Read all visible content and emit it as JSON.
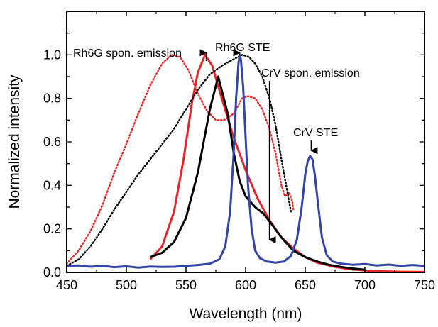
{
  "chart_data": {
    "type": "line",
    "xlabel": "Wavelength (nm)",
    "ylabel": "Normalized intensity",
    "xlim": [
      450,
      750
    ],
    "ylim": [
      0.0,
      1.2
    ],
    "x_ticks": [
      450,
      500,
      550,
      600,
      650,
      700,
      750
    ],
    "y_ticks": [
      0.0,
      0.2,
      0.4,
      0.6,
      0.8,
      1.0
    ],
    "grid": false,
    "legend": "none",
    "series": [
      {
        "key": "rh6g_spon",
        "style": "solid",
        "color": "#e8262a",
        "points": [
          [
            520,
            0.06
          ],
          [
            530,
            0.12
          ],
          [
            540,
            0.28
          ],
          [
            548,
            0.52
          ],
          [
            555,
            0.78
          ],
          [
            560,
            0.92
          ],
          [
            566,
            1.0
          ],
          [
            572,
            0.95
          ],
          [
            580,
            0.8
          ],
          [
            590,
            0.62
          ],
          [
            600,
            0.47
          ],
          [
            610,
            0.34
          ],
          [
            620,
            0.24
          ],
          [
            630,
            0.16
          ],
          [
            640,
            0.11
          ],
          [
            650,
            0.07
          ],
          [
            660,
            0.045
          ],
          [
            675,
            0.025
          ],
          [
            690,
            0.013
          ],
          [
            710,
            0.006
          ],
          [
            730,
            0.003
          ],
          [
            750,
            0.002
          ]
        ]
      },
      {
        "key": "rh6g_abs",
        "style": "dotted",
        "color": "#e8262a",
        "points": [
          [
            450,
            0.04
          ],
          [
            460,
            0.1
          ],
          [
            470,
            0.19
          ],
          [
            480,
            0.31
          ],
          [
            490,
            0.46
          ],
          [
            500,
            0.59
          ],
          [
            510,
            0.73
          ],
          [
            520,
            0.86
          ],
          [
            530,
            0.96
          ],
          [
            538,
            1.0
          ],
          [
            545,
            0.99
          ],
          [
            552,
            0.93
          ],
          [
            560,
            0.82
          ],
          [
            568,
            0.74
          ],
          [
            575,
            0.7
          ],
          [
            582,
            0.7
          ],
          [
            590,
            0.73
          ],
          [
            597,
            0.8
          ],
          [
            602,
            0.81
          ],
          [
            608,
            0.8
          ],
          [
            614,
            0.75
          ],
          [
            620,
            0.66
          ],
          [
            625,
            0.55
          ],
          [
            630,
            0.4
          ],
          [
            633,
            0.35
          ],
          [
            636,
            0.37
          ],
          [
            639,
            0.33
          ],
          [
            640,
            0.29
          ]
        ]
      },
      {
        "key": "crv_spon",
        "style": "solid",
        "color": "#000000",
        "points": [
          [
            520,
            0.07
          ],
          [
            530,
            0.09
          ],
          [
            540,
            0.14
          ],
          [
            550,
            0.25
          ],
          [
            560,
            0.46
          ],
          [
            570,
            0.75
          ],
          [
            577,
            0.9
          ],
          [
            585,
            0.73
          ],
          [
            590,
            0.55
          ],
          [
            595,
            0.42
          ],
          [
            600,
            0.35
          ],
          [
            608,
            0.3
          ],
          [
            615,
            0.27
          ],
          [
            622,
            0.22
          ],
          [
            630,
            0.16
          ],
          [
            640,
            0.1
          ],
          [
            650,
            0.07
          ],
          [
            660,
            0.05
          ],
          [
            670,
            0.035
          ],
          [
            680,
            0.025
          ],
          [
            690,
            0.018
          ],
          [
            700,
            0.012
          ]
        ]
      },
      {
        "key": "crv_abs",
        "style": "dotted",
        "color": "#000000",
        "points": [
          [
            450,
            0.03
          ],
          [
            460,
            0.06
          ],
          [
            470,
            0.12
          ],
          [
            480,
            0.2
          ],
          [
            490,
            0.29
          ],
          [
            500,
            0.37
          ],
          [
            510,
            0.45
          ],
          [
            520,
            0.52
          ],
          [
            530,
            0.59
          ],
          [
            540,
            0.66
          ],
          [
            550,
            0.75
          ],
          [
            560,
            0.84
          ],
          [
            570,
            0.91
          ],
          [
            580,
            0.95
          ],
          [
            590,
            0.98
          ],
          [
            597,
            1.0
          ],
          [
            603,
            0.99
          ],
          [
            608,
            0.96
          ],
          [
            614,
            0.9
          ],
          [
            620,
            0.8
          ],
          [
            625,
            0.68
          ],
          [
            630,
            0.52
          ],
          [
            634,
            0.4
          ],
          [
            638,
            0.28
          ]
        ]
      },
      {
        "key": "rh6g_ste",
        "style": "solid",
        "color": "#3445a8",
        "points": [
          [
            450,
            0.03
          ],
          [
            460,
            0.032
          ],
          [
            470,
            0.026
          ],
          [
            480,
            0.03
          ],
          [
            490,
            0.024
          ],
          [
            500,
            0.028
          ],
          [
            510,
            0.022
          ],
          [
            520,
            0.027
          ],
          [
            530,
            0.025
          ],
          [
            540,
            0.026
          ],
          [
            550,
            0.03
          ],
          [
            560,
            0.034
          ],
          [
            570,
            0.04
          ],
          [
            578,
            0.06
          ],
          [
            583,
            0.12
          ],
          [
            587,
            0.28
          ],
          [
            590,
            0.55
          ],
          [
            592,
            0.8
          ],
          [
            594,
            0.96
          ],
          [
            595,
            1.0
          ],
          [
            596,
            0.98
          ],
          [
            598,
            0.85
          ],
          [
            600,
            0.62
          ],
          [
            602,
            0.4
          ],
          [
            605,
            0.2
          ],
          [
            608,
            0.1
          ],
          [
            612,
            0.065
          ],
          [
            618,
            0.05
          ],
          [
            625,
            0.045
          ],
          [
            632,
            0.05
          ],
          [
            638,
            0.075
          ],
          [
            643,
            0.15
          ],
          [
            647,
            0.3
          ],
          [
            650,
            0.45
          ],
          [
            652,
            0.51
          ],
          [
            654,
            0.535
          ],
          [
            656,
            0.52
          ],
          [
            658,
            0.45
          ],
          [
            661,
            0.3
          ],
          [
            664,
            0.16
          ],
          [
            668,
            0.08
          ],
          [
            673,
            0.05
          ],
          [
            680,
            0.04
          ],
          [
            690,
            0.035
          ],
          [
            700,
            0.038
          ],
          [
            710,
            0.032
          ],
          [
            720,
            0.036
          ],
          [
            730,
            0.03
          ],
          [
            740,
            0.034
          ],
          [
            750,
            0.03
          ]
        ]
      }
    ],
    "annotations": [
      {
        "text": "Rh6G spon. emission",
        "x": 567,
        "y": 1.0
      },
      {
        "text": "Rh6G STE",
        "x": 595,
        "y": 1.0
      },
      {
        "text": "CrV spon. emission",
        "x": 620,
        "y": 0.15
      },
      {
        "text": "CrV STE",
        "x": 655,
        "y": 0.56
      }
    ]
  }
}
